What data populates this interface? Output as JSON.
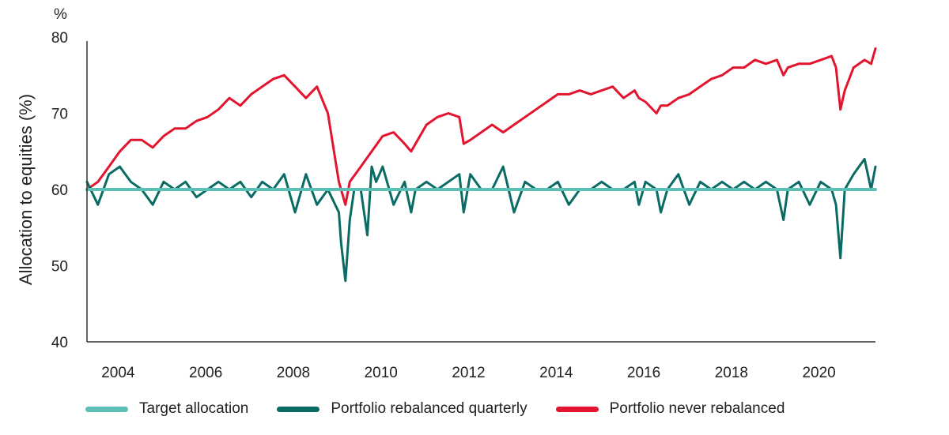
{
  "chart_data": {
    "type": "line",
    "title": "",
    "ylabel": "Allocation to equities (%)",
    "yunit": "%",
    "ylim": [
      40,
      80
    ],
    "yticks": [
      40,
      50,
      60,
      70,
      80
    ],
    "xlim": [
      2003.0,
      2021.0
    ],
    "xticks": [
      2004,
      2006,
      2008,
      2010,
      2012,
      2014,
      2016,
      2018,
      2020
    ],
    "grid": false,
    "legend_position": "bottom",
    "series": [
      {
        "name": "Target allocation",
        "color": "#5bbfb5",
        "x": [
          2003.0,
          2021.0
        ],
        "y": [
          60,
          60
        ]
      },
      {
        "name": "Portfolio rebalanced quarterly",
        "color": "#0a6b64",
        "x": [
          2003.0,
          2003.25,
          2003.5,
          2003.75,
          2004.0,
          2004.25,
          2004.5,
          2004.75,
          2005.0,
          2005.25,
          2005.5,
          2005.75,
          2006.0,
          2006.25,
          2006.5,
          2006.75,
          2007.0,
          2007.25,
          2007.5,
          2007.75,
          2008.0,
          2008.25,
          2008.5,
          2008.75,
          2008.8,
          2008.9,
          2009.0,
          2009.1,
          2009.25,
          2009.4,
          2009.5,
          2009.6,
          2009.75,
          2010.0,
          2010.25,
          2010.4,
          2010.5,
          2010.75,
          2011.0,
          2011.25,
          2011.5,
          2011.6,
          2011.75,
          2012.0,
          2012.25,
          2012.5,
          2012.75,
          2013.0,
          2013.25,
          2013.5,
          2013.75,
          2014.0,
          2014.25,
          2014.5,
          2014.75,
          2015.0,
          2015.25,
          2015.5,
          2015.6,
          2015.75,
          2016.0,
          2016.1,
          2016.25,
          2016.5,
          2016.75,
          2017.0,
          2017.25,
          2017.5,
          2017.75,
          2018.0,
          2018.25,
          2018.5,
          2018.75,
          2018.9,
          2019.0,
          2019.25,
          2019.5,
          2019.75,
          2020.0,
          2020.1,
          2020.2,
          2020.3,
          2020.5,
          2020.75,
          2020.9,
          2021.0
        ],
        "y": [
          61,
          58,
          62,
          63,
          61,
          60,
          58,
          61,
          60,
          61,
          59,
          60,
          61,
          60,
          61,
          59,
          61,
          60,
          62,
          57,
          62,
          58,
          60,
          57,
          53,
          48,
          56,
          60,
          60,
          54,
          63,
          61,
          63,
          58,
          61,
          57,
          60,
          61,
          60,
          61,
          62,
          57,
          62,
          60,
          60,
          63,
          57,
          61,
          60,
          60,
          61,
          58,
          60,
          60,
          61,
          60,
          60,
          61,
          58,
          61,
          60,
          57,
          60,
          62,
          58,
          61,
          60,
          61,
          60,
          61,
          60,
          61,
          60,
          56,
          60,
          61,
          58,
          61,
          60,
          58,
          51,
          60,
          62,
          64,
          60,
          63
        ]
      },
      {
        "name": "Portfolio never rebalanced",
        "color": "#e3142d",
        "x": [
          2003.0,
          2003.25,
          2003.5,
          2003.75,
          2004.0,
          2004.25,
          2004.5,
          2004.75,
          2005.0,
          2005.25,
          2005.5,
          2005.75,
          2006.0,
          2006.25,
          2006.5,
          2006.75,
          2007.0,
          2007.25,
          2007.5,
          2007.75,
          2008.0,
          2008.25,
          2008.5,
          2008.75,
          2008.9,
          2009.0,
          2009.25,
          2009.5,
          2009.75,
          2010.0,
          2010.25,
          2010.4,
          2010.6,
          2010.75,
          2011.0,
          2011.25,
          2011.5,
          2011.6,
          2011.75,
          2012.0,
          2012.25,
          2012.5,
          2012.75,
          2013.0,
          2013.25,
          2013.5,
          2013.75,
          2014.0,
          2014.25,
          2014.5,
          2014.75,
          2015.0,
          2015.25,
          2015.5,
          2015.6,
          2015.75,
          2016.0,
          2016.1,
          2016.25,
          2016.5,
          2016.75,
          2017.0,
          2017.25,
          2017.5,
          2017.75,
          2018.0,
          2018.25,
          2018.5,
          2018.75,
          2018.9,
          2019.0,
          2019.25,
          2019.5,
          2019.75,
          2020.0,
          2020.1,
          2020.2,
          2020.3,
          2020.5,
          2020.75,
          2020.9,
          2021.0
        ],
        "y": [
          60,
          61,
          63,
          65,
          66.5,
          66.5,
          65.5,
          67,
          68,
          68,
          69,
          69.5,
          70.5,
          72,
          71,
          72.5,
          73.5,
          74.5,
          75,
          73.5,
          72,
          73.5,
          70,
          61,
          58,
          61,
          63,
          65,
          67,
          67.5,
          66,
          65,
          67,
          68.5,
          69.5,
          70,
          69.5,
          66,
          66.5,
          67.5,
          68.5,
          67.5,
          68.5,
          69.5,
          70.5,
          71.5,
          72.5,
          72.5,
          73,
          72.5,
          73,
          73.5,
          72,
          73,
          72,
          71.5,
          70,
          71,
          71,
          72,
          72.5,
          73.5,
          74.5,
          75,
          76,
          76,
          77,
          76.5,
          77,
          75,
          76,
          76.5,
          76.5,
          77,
          77.5,
          76,
          70.5,
          73,
          76,
          77,
          76.5,
          78.5
        ]
      }
    ]
  }
}
